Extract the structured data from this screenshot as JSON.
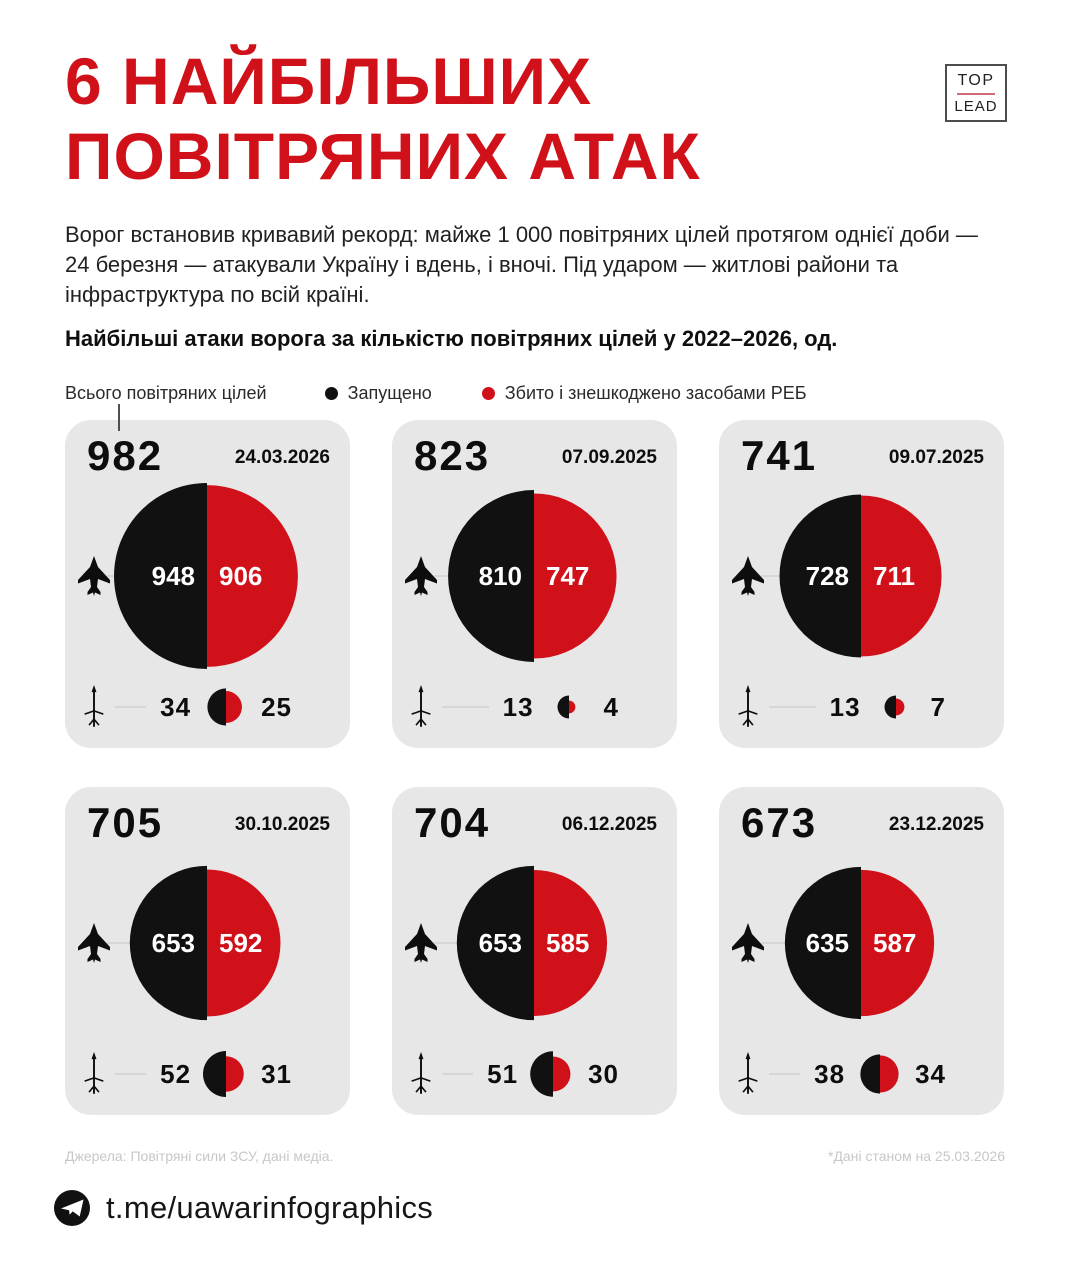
{
  "header": {
    "title_line1": "6 НАЙБІЛЬШИХ",
    "title_line2": "ПОВІТРЯНИХ АТАК",
    "logo_top": "TOP",
    "logo_lead": "LEAD"
  },
  "intro": "Ворог встановив кривавий рекорд: майже 1 000 повітряних цілей протягом однієї доби — 24 березня — атакували Україну і вдень, і вночі. Під ударом — житлові райони та інфраструктура по всій країні.",
  "section_title": "Найбільші атаки ворога за кількістю повітряних цілей у 2022–2026, од.",
  "legend": {
    "total": "Всього повітряних цілей",
    "launched": "Запущено",
    "downed": "Збито і знешкоджено засобами РЕБ"
  },
  "colors": {
    "red": "#d0111a",
    "black": "#111111",
    "card_bg": "#e7e7e7"
  },
  "chart_data": {
    "type": "pie",
    "title": "Найбільші атаки ворога за кількістю повітряних цілей у 2022–2026, од.",
    "units": "од.",
    "legend": [
      "Запущено",
      "Збито і знешкоджено засобами РЕБ"
    ],
    "cards": [
      {
        "total": 982,
        "date": "24.03.2026",
        "drones": {
          "launched": 948,
          "downed": 906
        },
        "missiles": {
          "launched": 34,
          "downed": 25
        }
      },
      {
        "total": 823,
        "date": "07.09.2025",
        "drones": {
          "launched": 810,
          "downed": 747
        },
        "missiles": {
          "launched": 13,
          "downed": 4
        }
      },
      {
        "total": 741,
        "date": "09.07.2025",
        "drones": {
          "launched": 728,
          "downed": 711
        },
        "missiles": {
          "launched": 13,
          "downed": 7
        }
      },
      {
        "total": 705,
        "date": "30.10.2025",
        "drones": {
          "launched": 653,
          "downed": 592
        },
        "missiles": {
          "launched": 52,
          "downed": 31
        }
      },
      {
        "total": 704,
        "date": "06.12.2025",
        "drones": {
          "launched": 653,
          "downed": 585
        },
        "missiles": {
          "launched": 51,
          "downed": 30
        }
      },
      {
        "total": 673,
        "date": "23.12.2025",
        "drones": {
          "launched": 635,
          "downed": 587
        },
        "missiles": {
          "launched": 38,
          "downed": 34
        }
      }
    ]
  },
  "footer": {
    "sources": "Джерела: Повітряні сили ЗСУ, дані медіа.",
    "note": "*Дані станом на 25.03.2026",
    "telegram": "t.me/uawarinfographics"
  }
}
